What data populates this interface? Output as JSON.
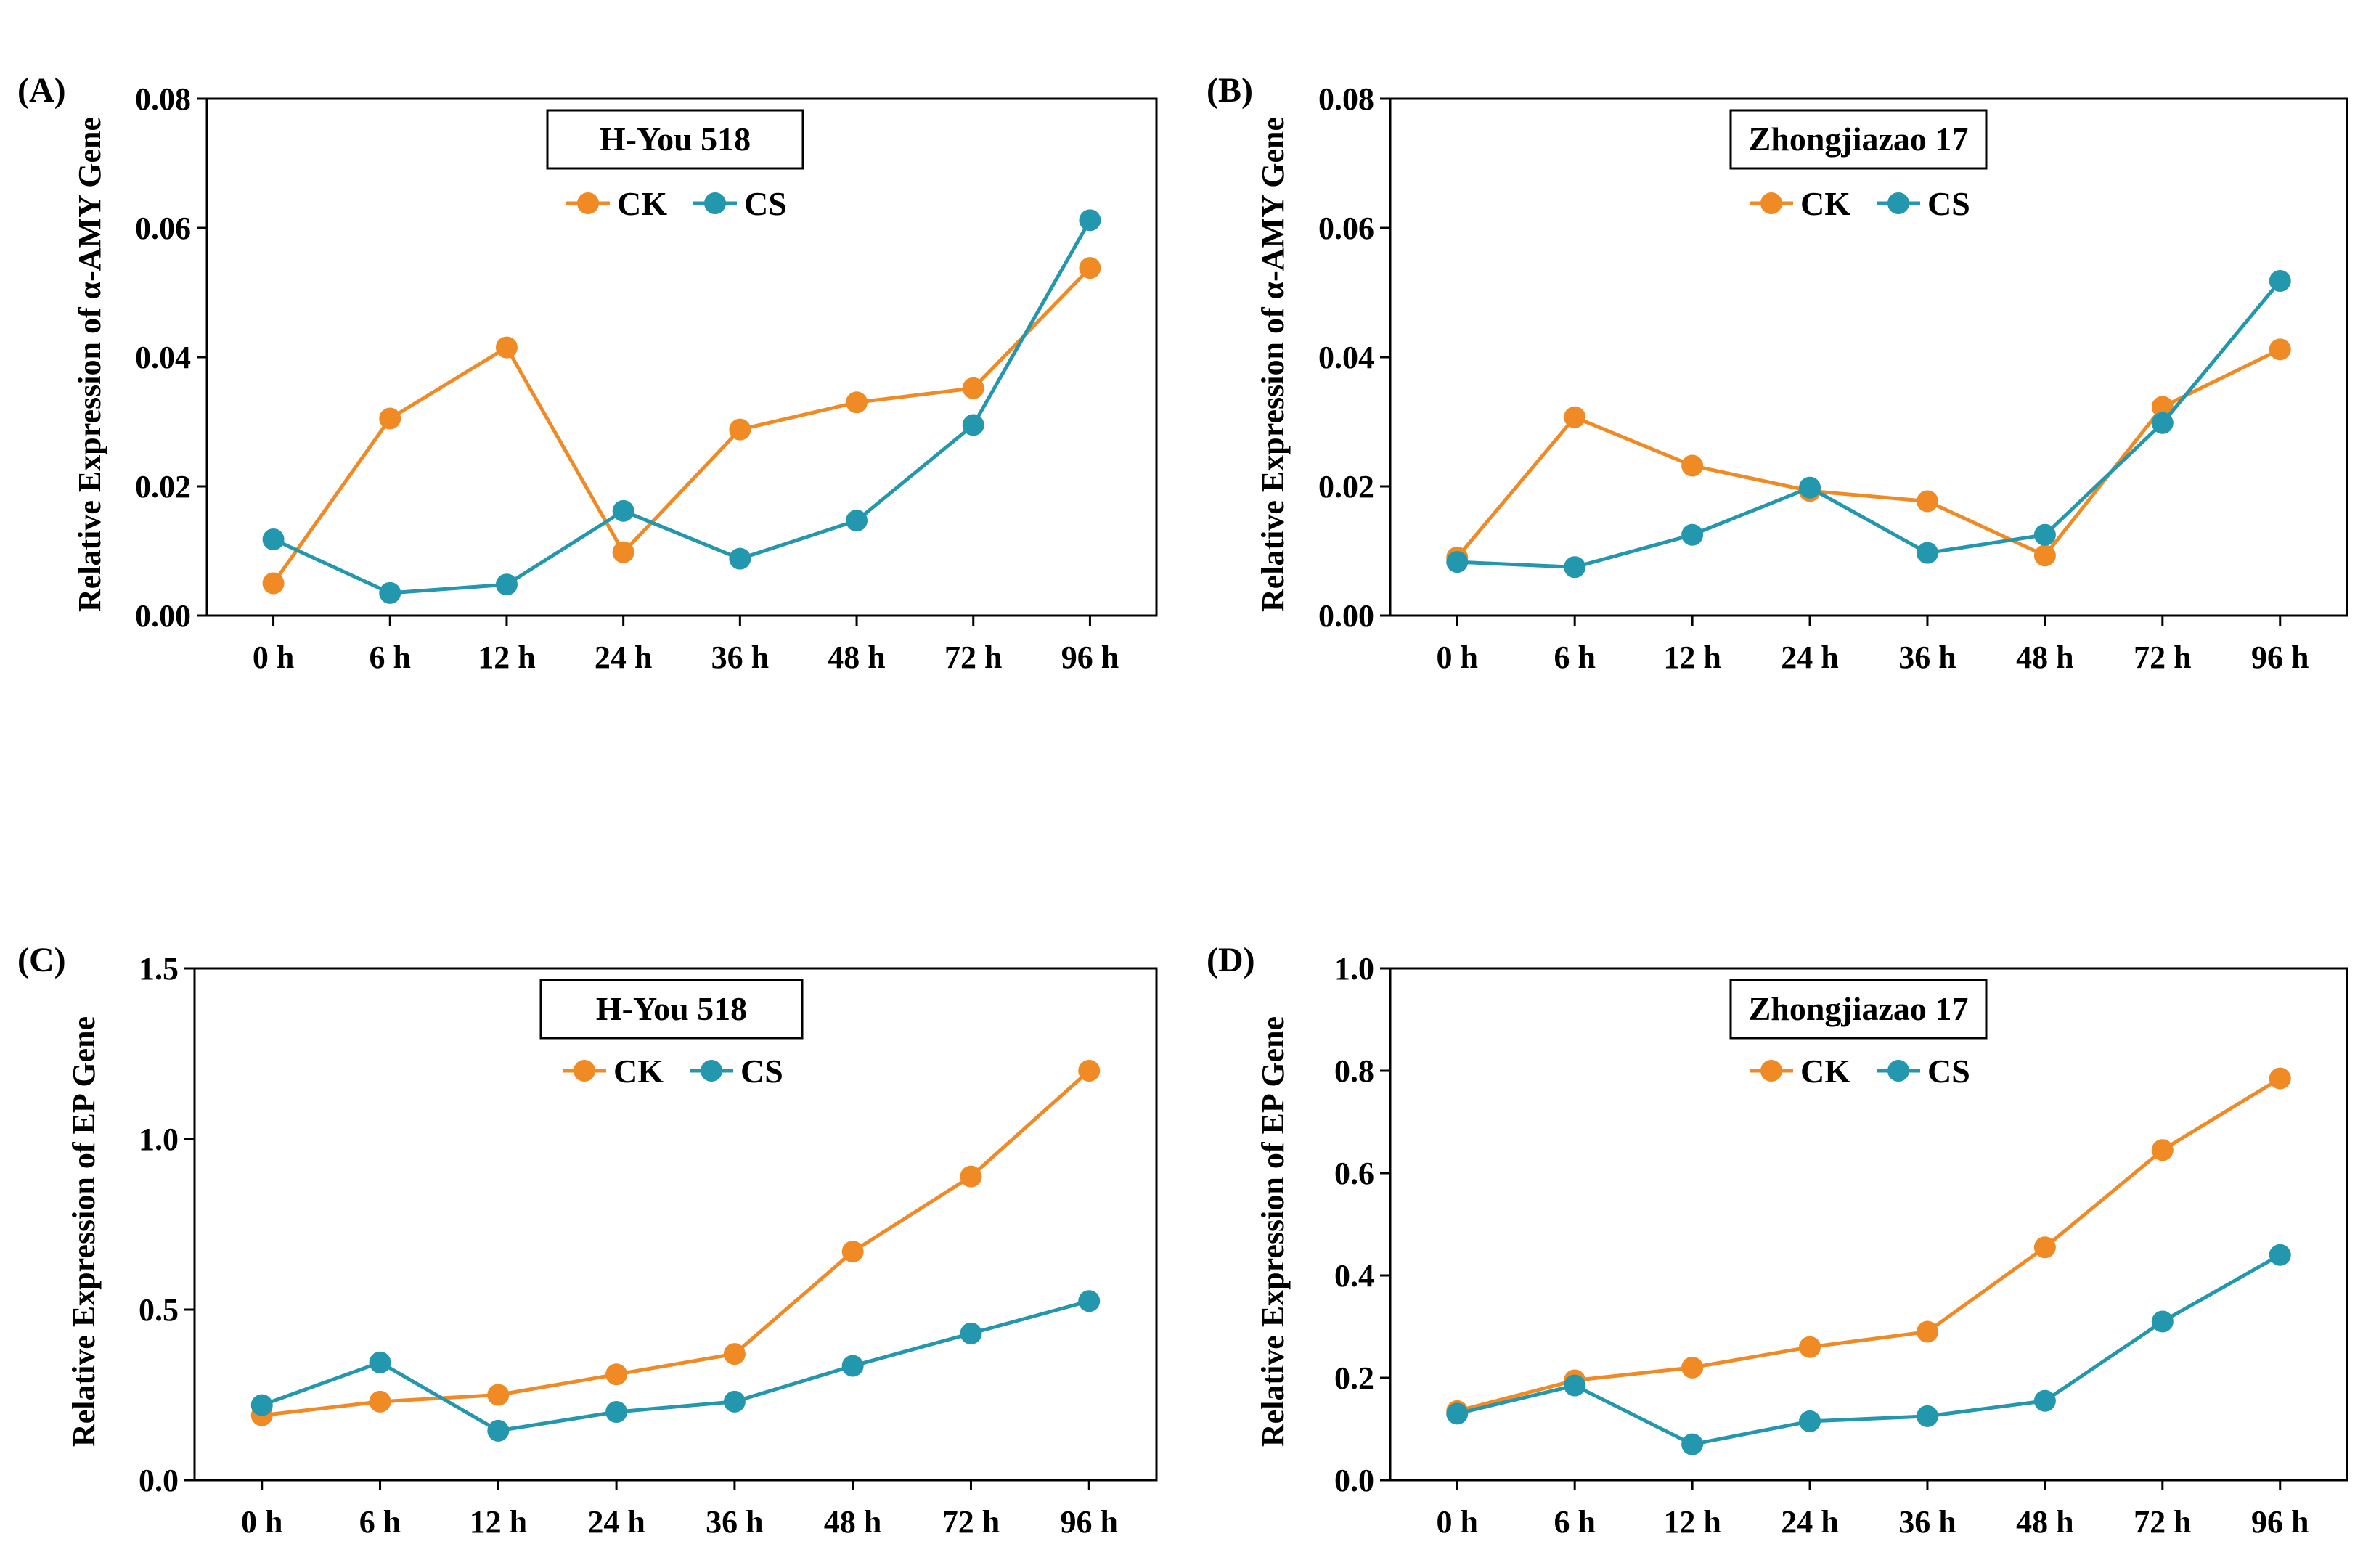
{
  "colors": {
    "ck": "#F08A24",
    "cs": "#2397AE",
    "axis": "#000000"
  },
  "chart_data": [
    {
      "type": "line",
      "panel_label": "(A)",
      "title": "H-You 518",
      "ylabel": "Relative Expression of α-AMY Gene",
      "categories": [
        "0 h",
        "6 h",
        "12 h",
        "24 h",
        "36 h",
        "48 h",
        "72 h",
        "96 h"
      ],
      "ylim": [
        0,
        0.08
      ],
      "yticks": [
        0,
        0.02,
        0.04,
        0.06,
        0.08
      ],
      "ytick_labels": [
        "0.00",
        "0.02",
        "0.04",
        "0.06",
        "0.08"
      ],
      "legend": [
        "CK",
        "CS"
      ],
      "series": [
        {
          "name": "CK",
          "values": [
            0.005,
            0.0305,
            0.0415,
            0.0098,
            0.0288,
            0.033,
            0.0352,
            0.0538
          ]
        },
        {
          "name": "CS",
          "values": [
            0.0118,
            0.0035,
            0.0048,
            0.0162,
            0.0088,
            0.0147,
            0.0295,
            0.0612
          ]
        }
      ]
    },
    {
      "type": "line",
      "panel_label": "(B)",
      "title": "Zhongjiazao 17",
      "ylabel": "Relative Expression of α-AMY Gene",
      "categories": [
        "0 h",
        "6 h",
        "12 h",
        "24 h",
        "36 h",
        "48 h",
        "72 h",
        "96 h"
      ],
      "ylim": [
        0,
        0.08
      ],
      "yticks": [
        0,
        0.02,
        0.04,
        0.06,
        0.08
      ],
      "ytick_labels": [
        "0.00",
        "0.02",
        "0.04",
        "0.06",
        "0.08"
      ],
      "legend": [
        "CK",
        "CS"
      ],
      "series": [
        {
          "name": "CK",
          "values": [
            0.009,
            0.0307,
            0.0232,
            0.0193,
            0.0177,
            0.0093,
            0.0323,
            0.0412
          ]
        },
        {
          "name": "CS",
          "values": [
            0.0083,
            0.0075,
            0.0125,
            0.0198,
            0.0097,
            0.0125,
            0.0298,
            0.0518
          ]
        }
      ]
    },
    {
      "type": "line",
      "panel_label": "(C)",
      "title": "H-You 518",
      "ylabel": "Relative Expression of EP Gene",
      "categories": [
        "0 h",
        "6 h",
        "12 h",
        "24 h",
        "36 h",
        "48 h",
        "72 h",
        "96 h"
      ],
      "ylim": [
        0,
        1.5
      ],
      "yticks": [
        0,
        0.5,
        1.0,
        1.5
      ],
      "ytick_labels": [
        "0.0",
        "0.5",
        "1.0",
        "1.5"
      ],
      "legend": [
        "CK",
        "CS"
      ],
      "series": [
        {
          "name": "CK",
          "values": [
            0.19,
            0.23,
            0.25,
            0.31,
            0.37,
            0.67,
            0.89,
            1.2
          ]
        },
        {
          "name": "CS",
          "values": [
            0.22,
            0.345,
            0.145,
            0.2,
            0.23,
            0.335,
            0.43,
            0.525
          ]
        }
      ]
    },
    {
      "type": "line",
      "panel_label": "(D)",
      "title": "Zhongjiazao 17",
      "ylabel": "Relative Expression of EP Gene",
      "categories": [
        "0 h",
        "6 h",
        "12 h",
        "24 h",
        "36 h",
        "48 h",
        "72 h",
        "96 h"
      ],
      "ylim": [
        0,
        1.0
      ],
      "yticks": [
        0,
        0.2,
        0.4,
        0.6,
        0.8,
        1.0
      ],
      "ytick_labels": [
        "0.0",
        "0.2",
        "0.4",
        "0.6",
        "0.8",
        "1.0"
      ],
      "legend": [
        "CK",
        "CS"
      ],
      "series": [
        {
          "name": "CK",
          "values": [
            0.135,
            0.195,
            0.22,
            0.26,
            0.29,
            0.455,
            0.645,
            0.785
          ]
        },
        {
          "name": "CS",
          "values": [
            0.13,
            0.185,
            0.07,
            0.115,
            0.125,
            0.155,
            0.31,
            0.44
          ]
        }
      ]
    }
  ]
}
